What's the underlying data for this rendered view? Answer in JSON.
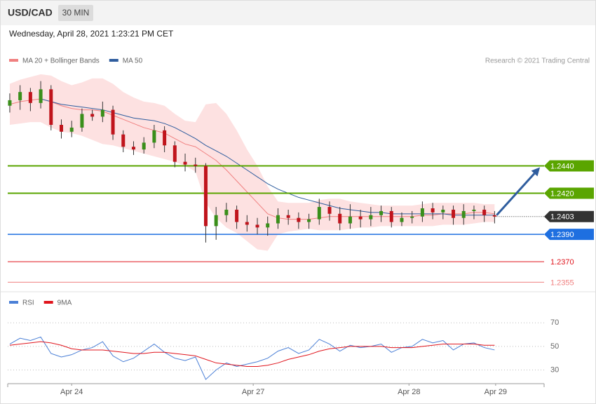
{
  "chart_data": [
    {
      "type": "candlestick",
      "title": "USD/CAD",
      "timeframe": "30 MIN",
      "subtitle": "Wednesday, April 28, 2021 1:23:21 PM CET",
      "source": "Research © 2021 Trading Central",
      "x": [
        0,
        1,
        2,
        3,
        4,
        5,
        6,
        7,
        8,
        9,
        10,
        11,
        12,
        13,
        14,
        15,
        16,
        17,
        18,
        19,
        20,
        21,
        22,
        23,
        24,
        25,
        26,
        27,
        28,
        29,
        30,
        31,
        32,
        33,
        34,
        35,
        36,
        37,
        38,
        39,
        40,
        41,
        42,
        43,
        44,
        45,
        46,
        47
      ],
      "xlim": [
        -0.2,
        51.8
      ],
      "ylim": [
        1.2348,
        1.251
      ],
      "candles": {
        "up_color": "#3a8f1a",
        "down_color": "#c0141c",
        "open": [
          1.2484,
          1.2488,
          1.2494,
          1.2486,
          1.2496,
          1.247,
          1.2465,
          1.2468,
          1.2478,
          1.2476,
          1.2481,
          1.2463,
          1.2454,
          1.2452,
          1.2457,
          1.2466,
          1.2455,
          1.2443,
          1.2441,
          1.244,
          1.2396,
          1.2404,
          1.2408,
          1.2399,
          1.2397,
          1.2395,
          1.2398,
          1.2404,
          1.2402,
          1.2399,
          1.2401,
          1.241,
          1.2405,
          1.2398,
          1.2403,
          1.2401,
          1.2404,
          1.2407,
          1.2399,
          1.2402,
          1.2403,
          1.2409,
          1.2406,
          1.2408,
          1.2402,
          1.2407,
          1.2408,
          1.2404
        ],
        "high": [
          1.2493,
          1.2499,
          1.2497,
          1.2502,
          1.2499,
          1.2474,
          1.2473,
          1.2482,
          1.2481,
          1.2487,
          1.2484,
          1.2466,
          1.2458,
          1.2461,
          1.247,
          1.2469,
          1.2458,
          1.2449,
          1.2446,
          1.2442,
          1.241,
          1.2413,
          1.2411,
          1.2404,
          1.2402,
          1.2403,
          1.2409,
          1.2408,
          1.2406,
          1.2405,
          1.2416,
          1.2414,
          1.241,
          1.2412,
          1.2408,
          1.241,
          1.2411,
          1.241,
          1.2406,
          1.2407,
          1.2414,
          1.2413,
          1.2411,
          1.2411,
          1.2412,
          1.2411,
          1.2411,
          1.2407
        ],
        "low": [
          1.2479,
          1.2481,
          1.248,
          1.2482,
          1.2466,
          1.246,
          1.2461,
          1.2465,
          1.2473,
          1.2472,
          1.2459,
          1.245,
          1.2448,
          1.2449,
          1.2453,
          1.245,
          1.2439,
          1.2436,
          1.2435,
          1.2384,
          1.2386,
          1.2399,
          1.2394,
          1.2392,
          1.239,
          1.2389,
          1.2394,
          1.2397,
          1.2394,
          1.2394,
          1.2397,
          1.24,
          1.2393,
          1.2394,
          1.2395,
          1.2396,
          1.2399,
          1.2395,
          1.2396,
          1.2398,
          1.2399,
          1.2401,
          1.2401,
          1.2397,
          1.2397,
          1.2401,
          1.2399,
          1.2398
        ],
        "close": [
          1.2488,
          1.2494,
          1.2486,
          1.2496,
          1.247,
          1.2465,
          1.2468,
          1.2478,
          1.2476,
          1.2481,
          1.2463,
          1.2454,
          1.2452,
          1.2457,
          1.2466,
          1.2455,
          1.2443,
          1.2441,
          1.244,
          1.2396,
          1.2404,
          1.2408,
          1.2399,
          1.2397,
          1.2395,
          1.2398,
          1.2404,
          1.2402,
          1.2399,
          1.2401,
          1.241,
          1.2405,
          1.2398,
          1.2403,
          1.2401,
          1.2404,
          1.2407,
          1.2399,
          1.2402,
          1.2403,
          1.2409,
          1.2406,
          1.2408,
          1.2402,
          1.2407,
          1.2408,
          1.2404,
          1.2403
        ]
      },
      "series": [
        {
          "name": "MA 20 + Bollinger Bands",
          "color": "#f08080",
          "band_color": "#fde1e1",
          "values": [
            1.2485,
            1.2487,
            1.2488,
            1.2489,
            1.2487,
            1.2484,
            1.2482,
            1.2481,
            1.2481,
            1.248,
            1.2477,
            1.2474,
            1.2471,
            1.2468,
            1.2466,
            1.2464,
            1.246,
            1.2456,
            1.2454,
            1.2449,
            1.2444,
            1.2437,
            1.2429,
            1.2421,
            1.2413,
            1.2405,
            1.2402,
            1.2401,
            1.2401,
            1.2401,
            1.2402,
            1.2403,
            1.2403,
            1.2403,
            1.2403,
            1.2403,
            1.2403,
            1.2403,
            1.2403,
            1.2403,
            1.2404,
            1.2404,
            1.2405,
            1.2405,
            1.2405,
            1.2406,
            1.2406,
            1.2405
          ],
          "upper": [
            1.25,
            1.2503,
            1.2505,
            1.2507,
            1.2506,
            1.2502,
            1.2499,
            1.2501,
            1.2504,
            1.2504,
            1.25,
            1.2494,
            1.249,
            1.2487,
            1.2486,
            1.2484,
            1.2478,
            1.2473,
            1.2472,
            1.2485,
            1.2486,
            1.2478,
            1.2466,
            1.2452,
            1.244,
            1.2425,
            1.2414,
            1.2413,
            1.2413,
            1.2413,
            1.2415,
            1.2416,
            1.2416,
            1.2414,
            1.2413,
            1.2412,
            1.2411,
            1.2411,
            1.2411,
            1.2411,
            1.2412,
            1.2413,
            1.2413,
            1.2413,
            1.2413,
            1.2413,
            1.2412,
            1.2412
          ],
          "lower": [
            1.247,
            1.2471,
            1.2472,
            1.2472,
            1.2468,
            1.2465,
            1.2464,
            1.2462,
            1.2459,
            1.2456,
            1.2455,
            1.2453,
            1.2451,
            1.2449,
            1.2447,
            1.2445,
            1.2443,
            1.244,
            1.2436,
            1.2413,
            1.2402,
            1.2395,
            1.2391,
            1.2385,
            1.2379,
            1.2378,
            1.239,
            1.2392,
            1.2393,
            1.2394,
            1.2393,
            1.2393,
            1.2393,
            1.2394,
            1.2395,
            1.2395,
            1.2396,
            1.2396,
            1.2396,
            1.2396,
            1.2396,
            1.2396,
            1.2397,
            1.2397,
            1.2397,
            1.2398,
            1.2399,
            1.2399
          ]
        },
        {
          "name": "MA 50",
          "color": "#2f5d9e",
          "values": [
            null,
            null,
            null,
            1.2489,
            1.2487,
            1.2485,
            1.2484,
            1.2483,
            1.2482,
            1.2481,
            1.2479,
            1.2477,
            1.2475,
            1.2474,
            1.2473,
            1.2471,
            1.2468,
            1.2464,
            1.246,
            1.2455,
            1.2451,
            1.2447,
            1.2442,
            1.2437,
            1.2432,
            1.2427,
            1.2423,
            1.242,
            1.2417,
            1.2415,
            1.2413,
            1.2411,
            1.2409,
            1.2408,
            1.2407,
            1.2406,
            1.2406,
            1.2405,
            1.2405,
            1.2405,
            1.2405,
            1.2405,
            1.2405,
            1.2404,
            1.2404,
            1.2404,
            1.2404,
            1.2404
          ]
        }
      ],
      "levels": [
        {
          "value": 1.244,
          "label": "1.2440",
          "color": "#5aa500",
          "tag": true
        },
        {
          "value": 1.242,
          "label": "1.2420",
          "color": "#5aa500",
          "tag": true
        },
        {
          "value": 1.2403,
          "label": "1.2403",
          "color": "#333333",
          "tag": true,
          "dotted": true
        },
        {
          "value": 1.239,
          "label": "1.2390",
          "color": "#1e6fe0",
          "tag": true
        },
        {
          "value": 1.237,
          "label": "1.2370",
          "color": "#e0141c",
          "tag": false
        },
        {
          "value": 1.2355,
          "label": "1.2355",
          "color": "#f08080",
          "tag": false
        }
      ],
      "arrow": {
        "from": [
          47.2,
          1.2404
        ],
        "to": [
          51.4,
          1.2439
        ],
        "color": "#2f5d9e"
      }
    },
    {
      "type": "line",
      "x": [
        0,
        1,
        2,
        3,
        4,
        5,
        6,
        7,
        8,
        9,
        10,
        11,
        12,
        13,
        14,
        15,
        16,
        17,
        18,
        19,
        20,
        21,
        22,
        23,
        24,
        25,
        26,
        27,
        28,
        29,
        30,
        31,
        32,
        33,
        34,
        35,
        36,
        37,
        38,
        39,
        40,
        41,
        42,
        43,
        44,
        45,
        46,
        47
      ],
      "xlim": [
        -0.2,
        51.8
      ],
      "ylim": [
        19,
        91
      ],
      "yticks": [
        30,
        50,
        70
      ],
      "grid": true,
      "xticks": [
        {
          "value": 6.0,
          "label": "Apr 24"
        },
        {
          "value": 23.6,
          "label": "Apr 27"
        },
        {
          "value": 38.7,
          "label": "Apr 28"
        },
        {
          "value": 47.1,
          "label": "Apr 29"
        }
      ],
      "series": [
        {
          "name": "RSI",
          "color": "#4a7fd6",
          "values": [
            52,
            57,
            55,
            58,
            44,
            41,
            43,
            47,
            49,
            54,
            42,
            37,
            40,
            46,
            52,
            45,
            40,
            38,
            41,
            22,
            30,
            36,
            33,
            35,
            37,
            40,
            46,
            49,
            44,
            47,
            56,
            52,
            46,
            51,
            49,
            50,
            52,
            45,
            49,
            50,
            56,
            53,
            55,
            47,
            52,
            53,
            49,
            47
          ]
        },
        {
          "name": "9MA",
          "color": "#e0141c",
          "values": [
            51,
            52,
            53,
            54,
            53,
            51,
            48,
            47,
            47,
            47,
            46,
            45,
            44,
            44,
            45,
            45,
            44,
            43,
            42,
            39,
            36,
            35,
            34,
            33,
            33,
            34,
            36,
            39,
            41,
            43,
            46,
            48,
            49,
            50,
            50,
            50,
            50,
            49,
            49,
            49,
            50,
            51,
            52,
            52,
            52,
            52,
            51,
            51
          ]
        }
      ]
    }
  ]
}
